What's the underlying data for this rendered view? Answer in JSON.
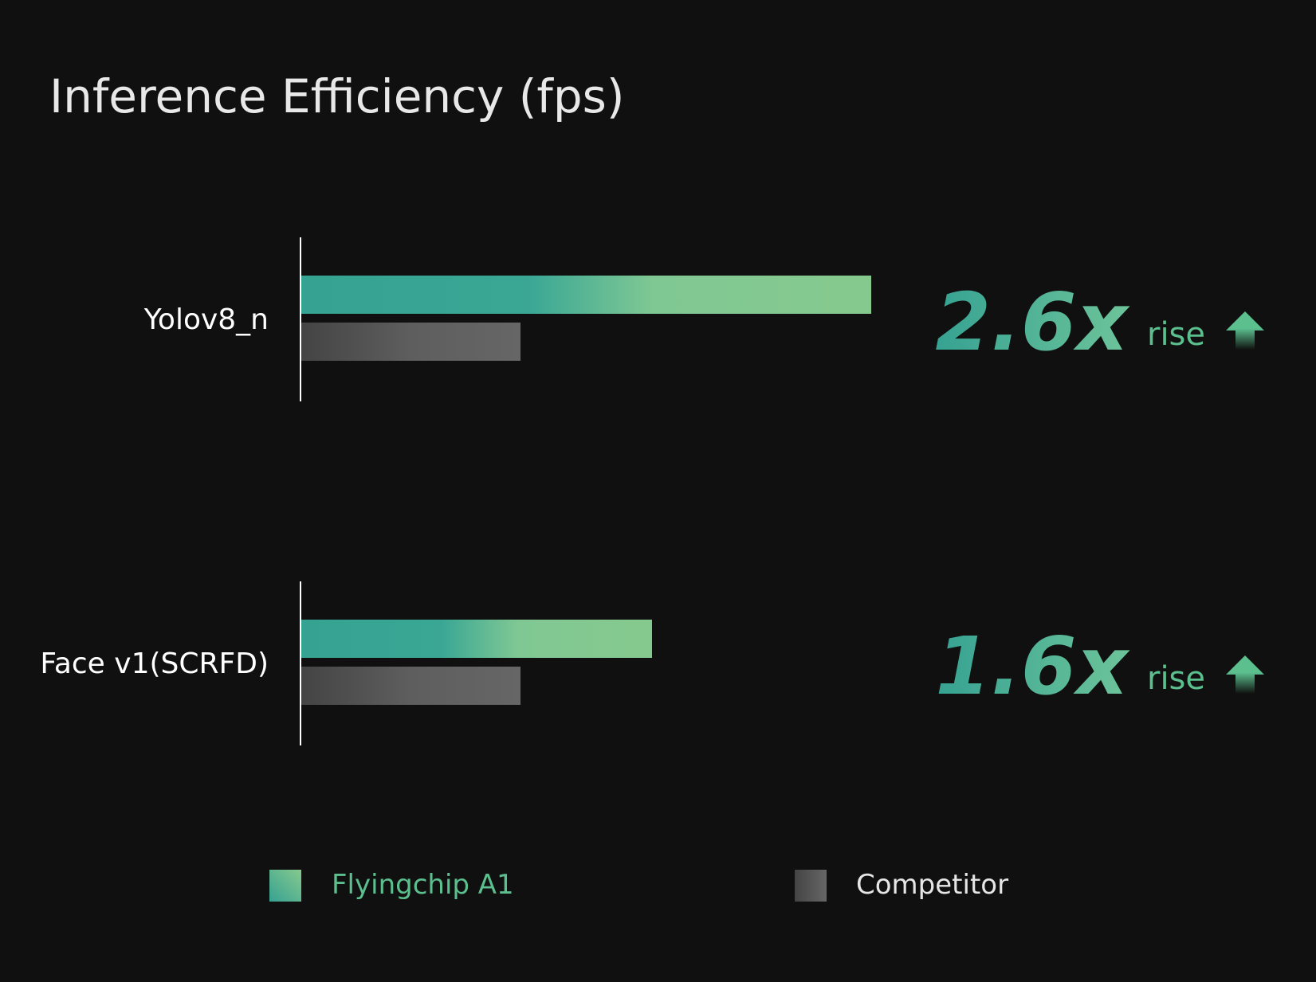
{
  "chart_data": {
    "type": "bar",
    "orientation": "horizontal",
    "title": "Inference Efficiency (fps)",
    "categories": [
      "Yolov8_n",
      "Face v1(SCRFD)"
    ],
    "series": [
      {
        "name": "Flyingchip A1",
        "values": [
          2.6,
          1.6
        ]
      },
      {
        "name": "Competitor",
        "values": [
          1.0,
          1.0
        ]
      }
    ],
    "annotations": [
      {
        "multiplier": "2.6x",
        "suffix": "rise"
      },
      {
        "multiplier": "1.6x",
        "suffix": "rise"
      }
    ],
    "xlim": [
      0,
      2.6
    ],
    "grid": false,
    "legend_position": "bottom"
  },
  "colors": {
    "background": "#101010",
    "primary_dark": "#36a292",
    "primary_light": "#84c98f",
    "competitor_dark": "#444444",
    "competitor_light": "#666666",
    "accent_text": "#5bbf8e",
    "axis": "#ffffff"
  },
  "icons": {
    "rise": "arrow-up-icon"
  }
}
